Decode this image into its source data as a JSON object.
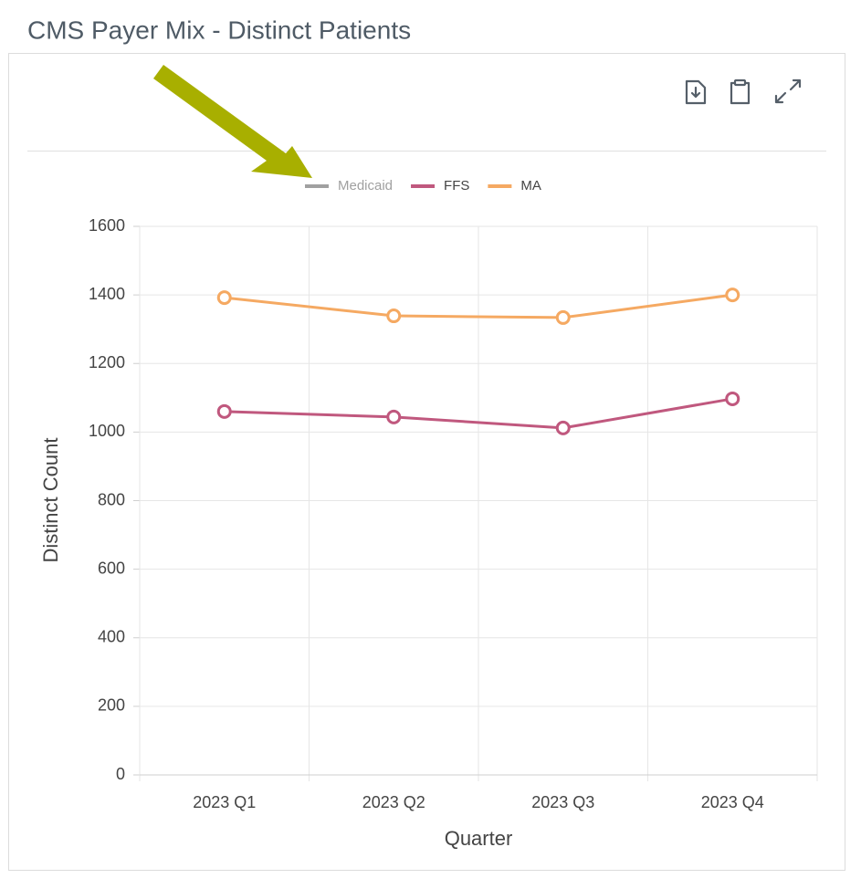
{
  "header": {
    "title": "CMS Payer Mix - Distinct Patients"
  },
  "chart_data": {
    "type": "line",
    "x_label": "Quarter",
    "y_label": "Distinct Count",
    "categories": [
      "2023 Q1",
      "2023 Q2",
      "2023 Q3",
      "2023 Q4"
    ],
    "series": [
      {
        "name": "Medicaid",
        "color": "#a0a0a0",
        "visible": false,
        "values": [
          null,
          null,
          null,
          null
        ]
      },
      {
        "name": "FFS",
        "color": "#c0587e",
        "visible": true,
        "values": [
          1060,
          1044,
          1012,
          1097
        ]
      },
      {
        "name": "MA",
        "color": "#f5a962",
        "visible": true,
        "values": [
          1392,
          1339,
          1334,
          1400
        ]
      }
    ],
    "ylim": [
      0,
      1600
    ],
    "yticks": [
      0,
      200,
      400,
      600,
      800,
      1000,
      1200,
      1400,
      1600
    ],
    "grid": true
  }
}
